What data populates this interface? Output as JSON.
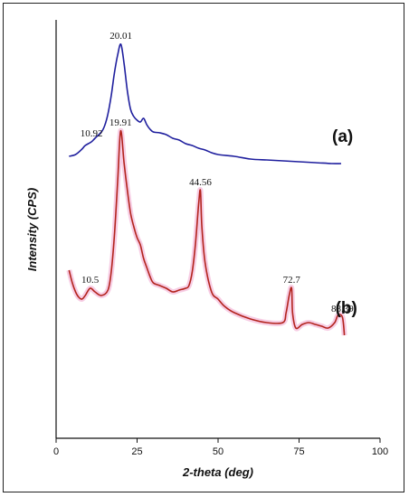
{
  "chart_data": {
    "type": "line",
    "title": "",
    "xlabel": "2-theta (deg)",
    "ylabel": "Intensity (CPS)",
    "xlim": [
      0,
      100
    ],
    "xticks": [
      "0",
      "25",
      "50",
      "75",
      "100"
    ],
    "yticks": [],
    "grid": false,
    "legend": "none",
    "series": [
      {
        "tag": "(a)",
        "color": "#1f1f9e",
        "halo": "",
        "x": [
          4,
          6,
          8,
          9,
          10.9,
          12,
          14,
          15,
          16,
          17,
          18,
          19,
          20.01,
          21,
          22,
          23,
          24,
          25,
          26,
          27,
          28,
          29,
          30,
          32,
          34,
          36,
          38,
          40,
          42,
          44,
          46,
          48,
          50,
          55,
          60,
          65,
          70,
          75,
          80,
          85,
          88
        ],
        "y": [
          0.82,
          0.8,
          0.74,
          0.7,
          0.66,
          0.62,
          0.55,
          0.48,
          0.35,
          0.15,
          -0.1,
          -0.3,
          -0.42,
          -0.2,
          0.1,
          0.3,
          0.38,
          0.42,
          0.44,
          0.4,
          0.47,
          0.52,
          0.55,
          0.56,
          0.58,
          0.62,
          0.64,
          0.68,
          0.7,
          0.73,
          0.75,
          0.78,
          0.8,
          0.82,
          0.85,
          0.86,
          0.87,
          0.88,
          0.89,
          0.9,
          0.9
        ],
        "annotations": [
          {
            "x": 10.92,
            "y": 0.66,
            "text": "10.92"
          },
          {
            "x": 20.01,
            "y": -0.42,
            "text": "20.01"
          }
        ]
      },
      {
        "tag": "(b)",
        "color": "#b3241d",
        "halo": "#f4b8d8",
        "x": [
          4,
          5,
          6,
          7,
          8,
          9,
          10.5,
          12,
          14,
          16,
          17,
          18,
          19,
          19.91,
          21,
          22,
          23,
          24,
          25,
          26,
          27,
          28,
          29,
          30,
          32,
          34,
          36,
          38,
          40,
          41,
          42,
          43,
          44,
          44.56,
          45,
          46,
          48,
          50,
          52,
          55,
          60,
          65,
          70,
          71,
          72,
          72.7,
          73,
          74,
          76,
          78,
          80,
          82,
          84,
          86,
          87,
          88.39,
          89
        ],
        "y": [
          2.08,
          2.22,
          2.32,
          2.38,
          2.4,
          2.36,
          2.28,
          2.32,
          2.36,
          2.3,
          2.1,
          1.7,
          1.1,
          0.54,
          0.9,
          1.2,
          1.45,
          1.6,
          1.72,
          1.8,
          1.95,
          2.05,
          2.15,
          2.22,
          2.25,
          2.28,
          2.32,
          2.3,
          2.28,
          2.25,
          2.1,
          1.8,
          1.35,
          1.2,
          1.6,
          2.0,
          2.32,
          2.4,
          2.48,
          2.55,
          2.62,
          2.66,
          2.66,
          2.55,
          2.35,
          2.28,
          2.55,
          2.72,
          2.68,
          2.66,
          2.68,
          2.7,
          2.72,
          2.66,
          2.58,
          2.6,
          2.8
        ],
        "annotations": [
          {
            "x": 10.5,
            "y": 2.28,
            "text": "10.5"
          },
          {
            "x": 19.91,
            "y": 0.54,
            "text": "19.91"
          },
          {
            "x": 44.56,
            "y": 1.2,
            "text": "44.56"
          },
          {
            "x": 72.7,
            "y": 2.28,
            "text": "72.7"
          },
          {
            "x": 88.39,
            "y": 2.6,
            "text": "88.39"
          }
        ]
      }
    ]
  }
}
